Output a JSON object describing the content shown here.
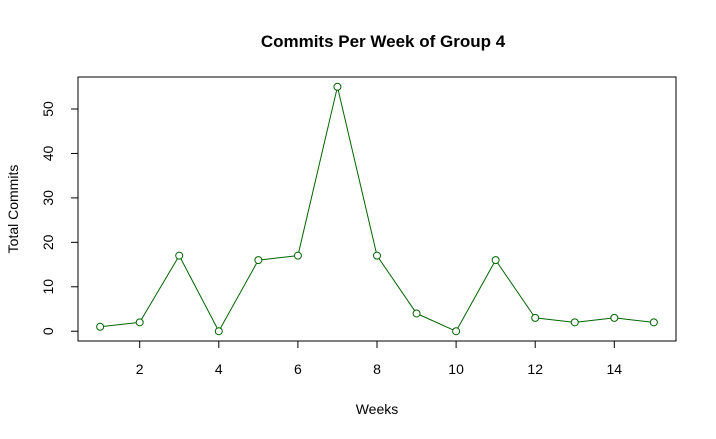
{
  "chart_data": {
    "type": "line",
    "title": "Commits Per Week of Group 4",
    "xlabel": "Weeks",
    "ylabel": "Total Commits",
    "x": [
      1,
      2,
      3,
      4,
      5,
      6,
      7,
      8,
      9,
      10,
      11,
      12,
      13,
      14,
      15
    ],
    "series": [
      {
        "values": [
          1,
          2,
          17,
          0,
          16,
          17,
          55,
          17,
          4,
          0,
          16,
          3,
          2,
          3,
          2
        ],
        "color": "#006400"
      }
    ],
    "xlim": [
      0.44,
      15.56
    ],
    "ylim": [
      -2.2,
      57.2
    ],
    "x_ticks": [
      2,
      4,
      6,
      8,
      10,
      12,
      14
    ],
    "y_ticks": [
      0,
      10,
      20,
      30,
      40,
      50
    ],
    "grid": false,
    "legend": "none",
    "marker": "open-circle"
  }
}
